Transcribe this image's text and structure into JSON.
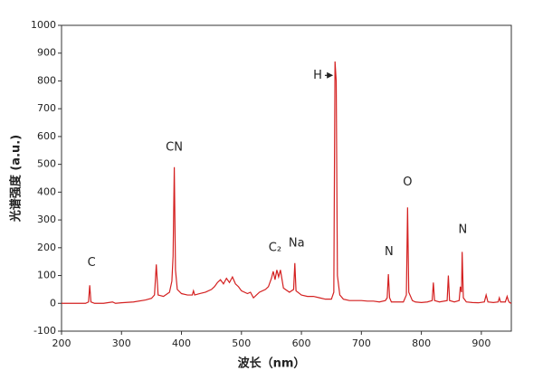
{
  "chart_data": {
    "type": "line",
    "x_label": "波长（nm）",
    "y_label": "光谱强度 (a.u.)",
    "xlim": [
      200,
      950
    ],
    "ylim": [
      -100,
      1000
    ],
    "xticks": [
      200,
      300,
      400,
      500,
      600,
      700,
      800,
      900
    ],
    "yticks": [
      -100,
      0,
      100,
      200,
      300,
      400,
      500,
      600,
      700,
      800,
      900,
      1000
    ],
    "color": "#d42020",
    "x": [
      200,
      210,
      220,
      230,
      240,
      245,
      247,
      249,
      255,
      270,
      285,
      290,
      300,
      320,
      340,
      350,
      355,
      358,
      361,
      370,
      380,
      384,
      386,
      388,
      390,
      393,
      400,
      410,
      418,
      420,
      422,
      430,
      440,
      450,
      455,
      460,
      465,
      470,
      475,
      480,
      485,
      490,
      495,
      500,
      510,
      515,
      520,
      530,
      540,
      545,
      550,
      553,
      556,
      559,
      562,
      565,
      570,
      580,
      587,
      589,
      591,
      600,
      610,
      620,
      630,
      640,
      650,
      654,
      656,
      658,
      660,
      664,
      670,
      680,
      690,
      700,
      710,
      720,
      730,
      740,
      743,
      745,
      747,
      750,
      760,
      770,
      775,
      777,
      779,
      785,
      790,
      800,
      810,
      818,
      820,
      822,
      830,
      843,
      845,
      847,
      855,
      863,
      865,
      867,
      868,
      870,
      875,
      885,
      895,
      905,
      908,
      911,
      920,
      928,
      930,
      932,
      940,
      943,
      945,
      947,
      950
    ],
    "values": [
      0,
      0,
      0,
      0,
      0,
      5,
      65,
      5,
      0,
      0,
      5,
      0,
      2,
      5,
      12,
      18,
      30,
      140,
      30,
      25,
      40,
      80,
      170,
      490,
      120,
      50,
      35,
      30,
      30,
      45,
      30,
      35,
      40,
      50,
      60,
      75,
      85,
      70,
      90,
      75,
      95,
      70,
      60,
      45,
      35,
      40,
      20,
      40,
      50,
      60,
      90,
      115,
      85,
      120,
      95,
      120,
      55,
      40,
      50,
      145,
      45,
      30,
      25,
      25,
      20,
      15,
      15,
      40,
      870,
      800,
      100,
      30,
      15,
      10,
      10,
      10,
      8,
      8,
      5,
      10,
      20,
      105,
      20,
      5,
      5,
      5,
      30,
      345,
      40,
      10,
      5,
      3,
      5,
      10,
      75,
      10,
      5,
      10,
      100,
      10,
      5,
      10,
      60,
      40,
      185,
      20,
      5,
      3,
      2,
      5,
      30,
      5,
      3,
      5,
      20,
      5,
      5,
      25,
      10,
      3,
      0
    ],
    "annotations": [
      {
        "text": "C",
        "x": 250,
        "y": 145
      },
      {
        "text": "CN",
        "x": 388,
        "y": 560
      },
      {
        "text": "C₂",
        "x": 556,
        "y": 200
      },
      {
        "text": "Na",
        "x": 592,
        "y": 215
      },
      {
        "text": "H",
        "x": 627,
        "y": 820
      },
      {
        "text": "N",
        "x": 746,
        "y": 185
      },
      {
        "text": "O",
        "x": 777,
        "y": 435
      },
      {
        "text": "N",
        "x": 869,
        "y": 265
      }
    ]
  }
}
